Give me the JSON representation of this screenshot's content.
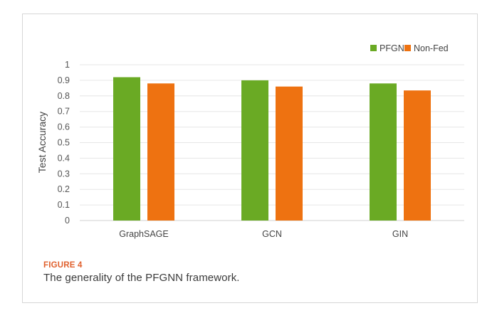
{
  "chart_data": {
    "type": "bar",
    "categories": [
      "GraphSAGE",
      "GCN",
      "GIN"
    ],
    "series": [
      {
        "name": "PFGNN",
        "values": [
          0.92,
          0.9,
          0.88
        ],
        "color": "#6aaa24"
      },
      {
        "name": "Non-Fed",
        "values": [
          0.88,
          0.86,
          0.835
        ],
        "color": "#ee7211"
      }
    ],
    "ylabel": "Test Accuracy",
    "xlabel": "",
    "ylim": [
      0,
      1
    ],
    "yticks": [
      "0",
      "0.1",
      "0.2",
      "0.3",
      "0.4",
      "0.5",
      "0.6",
      "0.7",
      "0.8",
      "0.9",
      "1"
    ],
    "grid": true,
    "legend_position": "top-right"
  },
  "caption": {
    "label": "FIGURE 4",
    "text": "The generality of the PFGNN framework."
  }
}
